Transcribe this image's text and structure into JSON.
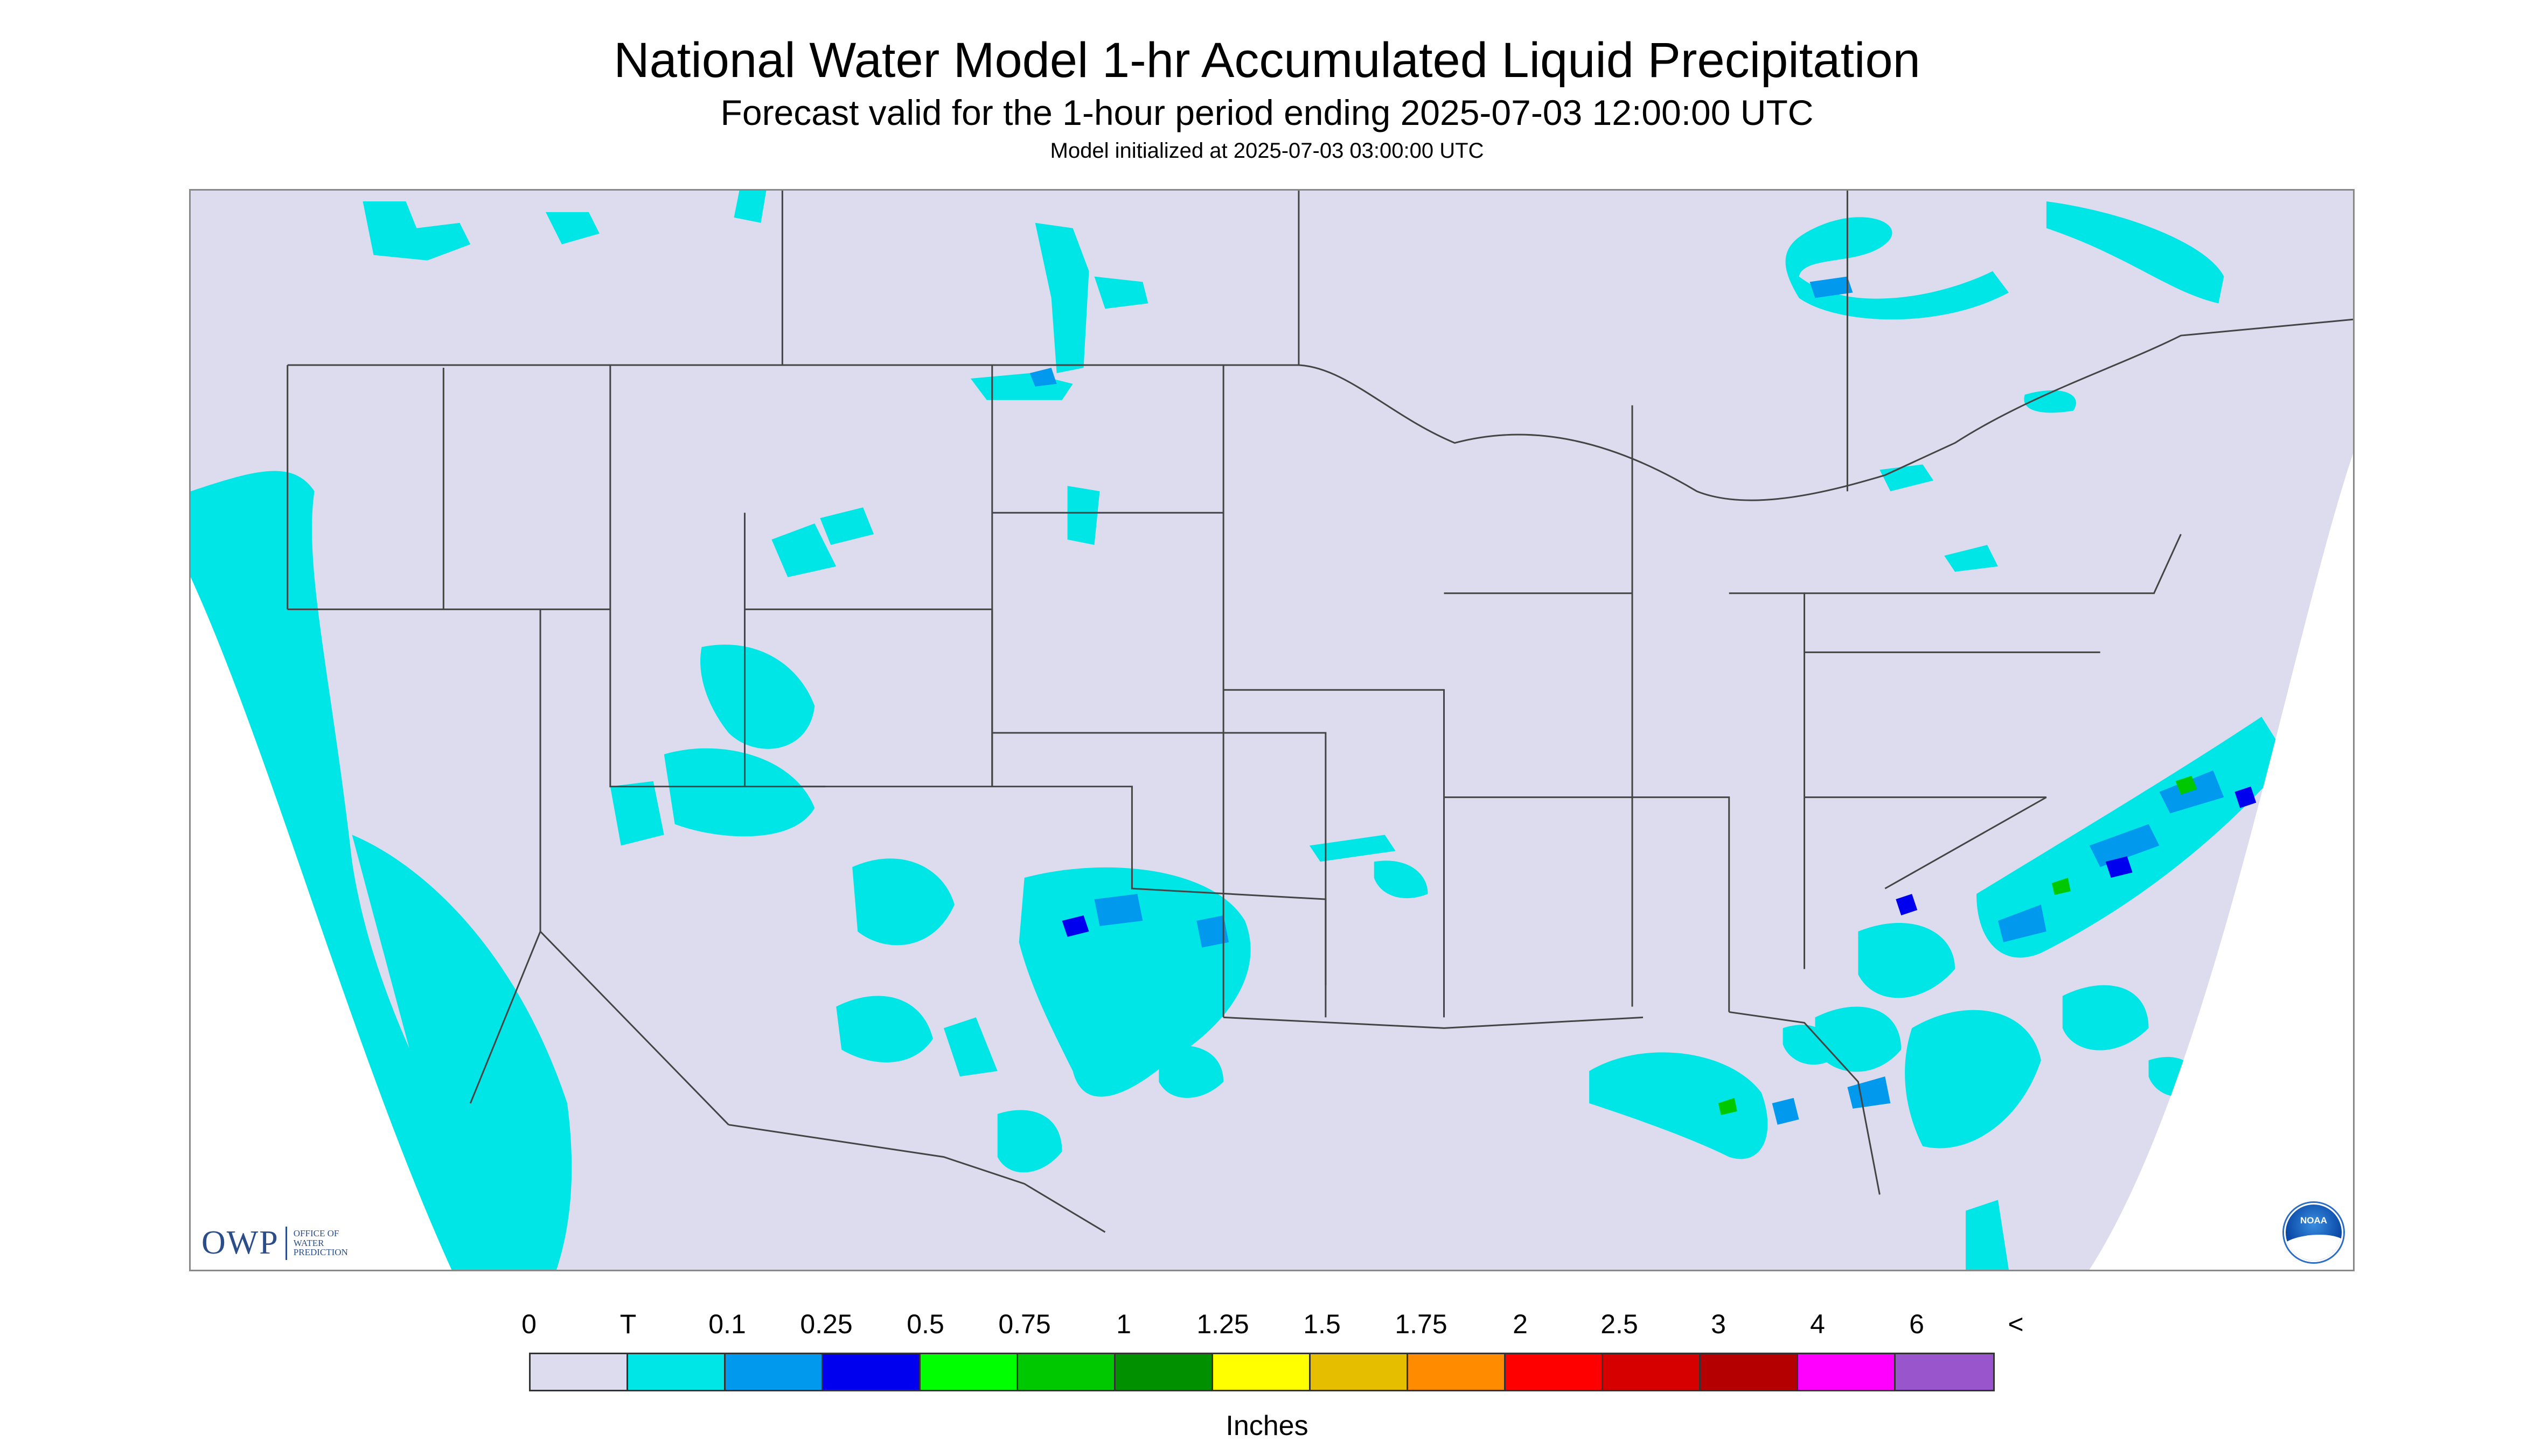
{
  "title": "National Water Model 1-hr Accumulated Liquid Precipitation",
  "subtitle": "Forecast valid for the 1-hour period ending 2025-07-03 12:00:00 UTC",
  "init_text": "Model initialized at 2025-07-03 03:00:00 UTC",
  "logos": {
    "owp_main": "OWP",
    "owp_sub": [
      "OFFICE OF",
      "WATER",
      "PREDICTION"
    ],
    "noaa_text": "NOAA"
  },
  "legend": {
    "labels": [
      "0",
      "T",
      "0.1",
      "0.25",
      "0.5",
      "0.75",
      "1",
      "1.25",
      "1.5",
      "1.75",
      "2",
      "2.5",
      "3",
      "4",
      "6",
      "<"
    ],
    "colors": [
      "#dcdcee",
      "#00e6e6",
      "#0099ee",
      "#0000ee",
      "#00ff00",
      "#00c800",
      "#009000",
      "#ffff00",
      "#e6be00",
      "#ff8c00",
      "#ff0000",
      "#d60000",
      "#b40000",
      "#ff00ff",
      "#9955cc"
    ],
    "units": "Inches"
  },
  "map_colors": {
    "background": "#dcdcee",
    "trace": "#00e6e6",
    "light": "#0099ee",
    "moderate": "#0000ee",
    "green": "#00c800",
    "boundary": "#444444"
  }
}
